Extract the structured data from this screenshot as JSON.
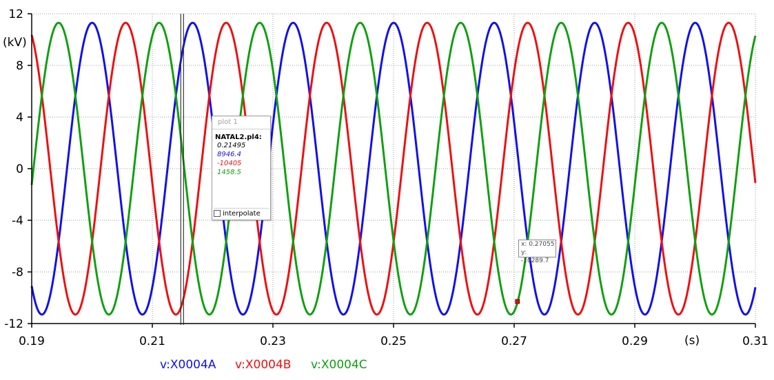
{
  "chart_data": {
    "type": "line",
    "xlim": [
      0.19,
      0.31
    ],
    "ylim": [
      -12,
      12
    ],
    "xticks": [
      "0.19",
      "0.21",
      "0.23",
      "0.25",
      "0.27",
      "0.29",
      "0.31"
    ],
    "yticks": [
      "12",
      "8",
      "4",
      "0",
      "-4",
      "-8",
      "-12"
    ],
    "xunit": "(s)",
    "yunit": "(kV)",
    "grid": true,
    "series": [
      {
        "name": "v:X0004A",
        "color": "#1010ee",
        "amplitude": 11.3,
        "frequency_hz": 60,
        "phase_deg": -270.4
      },
      {
        "name": "v:X0004B",
        "color": "#ee1010",
        "amplitude": 11.3,
        "frequency_hz": 60,
        "phase_deg": -30.4
      },
      {
        "name": "v:X0004C",
        "color": "#10a010",
        "amplitude": 11.3,
        "frequency_hz": 60,
        "phase_deg": -150.4
      }
    ],
    "vertical_cursor_x": 0.21495,
    "cursor_point": {
      "x": 0.27055,
      "y": -10.2897
    }
  },
  "data_box": {
    "title": "plot 1",
    "file": "NATAL2.pl4:",
    "time": "0.21495",
    "v_a": "8946.4",
    "v_b": "-10405",
    "v_c": "1458.5",
    "interpolate_label": "interpolate"
  },
  "cursor_tip": {
    "x_text": "x: 0.27055",
    "y_text": "y: -10289.7"
  }
}
